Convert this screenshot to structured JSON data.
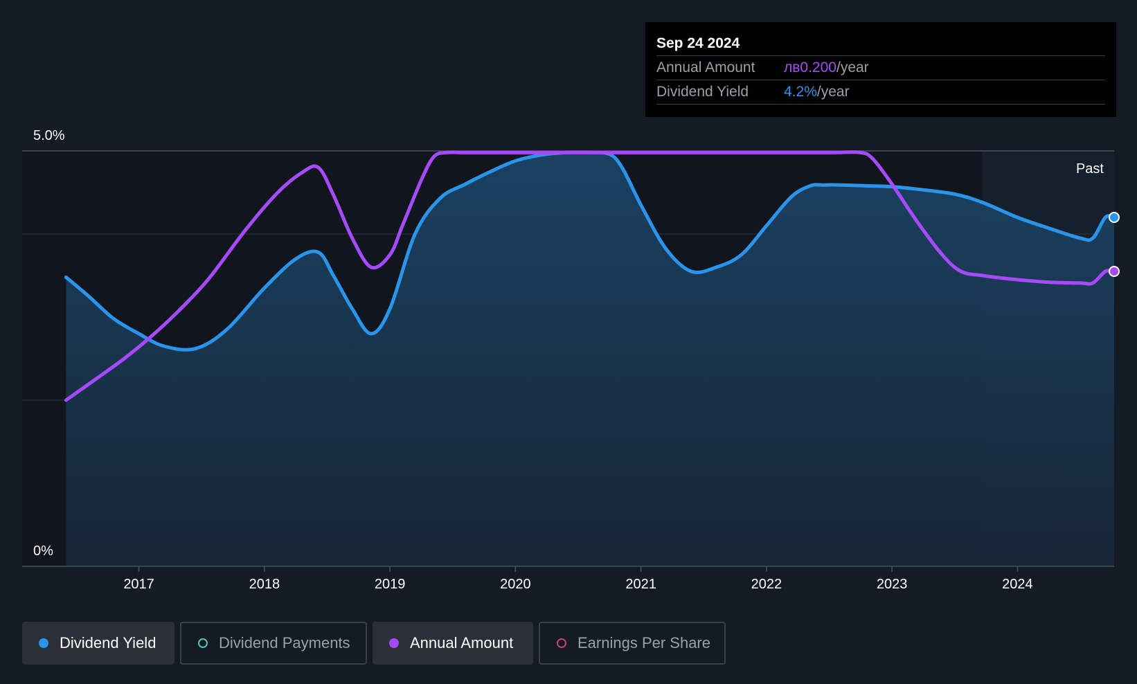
{
  "tooltip": {
    "date": "Sep 24 2024",
    "rows": [
      {
        "label": "Annual Amount",
        "prefix": "лв",
        "value": "0.200",
        "unit": "/year",
        "color": "#a64af7"
      },
      {
        "label": "Dividend Yield",
        "prefix": "",
        "value": "4.2%",
        "unit": "/year",
        "color": "#2994ea"
      }
    ]
  },
  "legend": [
    {
      "label": "Dividend Yield",
      "active": true,
      "color": "#2994ea"
    },
    {
      "label": "Dividend Payments",
      "active": false,
      "color": "#57c4b6"
    },
    {
      "label": "Annual Amount",
      "active": true,
      "color": "#a64af7"
    },
    {
      "label": "Earnings Per Share",
      "active": false,
      "color": "#c04477"
    }
  ],
  "chart_data": {
    "type": "area",
    "y_tick_labels": [
      "5.0%",
      "0%"
    ],
    "ylim": [
      0,
      5.0
    ],
    "xlim": [
      2016.07,
      2024.77
    ],
    "x_ticks": [
      2017,
      2018,
      2019,
      2020,
      2021,
      2022,
      2023,
      2024
    ],
    "past_label": "Past",
    "past_region_start": 2023.72,
    "series": [
      {
        "name": "Dividend Yield",
        "color": "#2994ea",
        "x": [
          2016.42,
          2016.6,
          2016.8,
          2017.0,
          2017.2,
          2017.45,
          2017.7,
          2018.0,
          2018.25,
          2018.43,
          2018.55,
          2018.7,
          2018.85,
          2019.0,
          2019.2,
          2019.4,
          2019.6,
          2019.8,
          2020.0,
          2020.2,
          2020.4,
          2020.6,
          2020.75,
          2020.85,
          2021.0,
          2021.2,
          2021.4,
          2021.6,
          2021.8,
          2022.0,
          2022.2,
          2022.35,
          2022.45,
          2022.6,
          2022.8,
          2023.0,
          2023.2,
          2023.5,
          2023.72,
          2024.0,
          2024.25,
          2024.5,
          2024.6,
          2024.7,
          2024.77
        ],
        "y": [
          3.48,
          3.25,
          2.98,
          2.8,
          2.65,
          2.62,
          2.85,
          3.35,
          3.7,
          3.78,
          3.5,
          3.1,
          2.8,
          3.1,
          4.0,
          4.43,
          4.6,
          4.75,
          4.88,
          4.95,
          4.98,
          4.98,
          4.96,
          4.8,
          4.35,
          3.82,
          3.55,
          3.6,
          3.75,
          4.1,
          4.45,
          4.58,
          4.59,
          4.59,
          4.58,
          4.57,
          4.54,
          4.48,
          4.38,
          4.2,
          4.07,
          3.95,
          3.95,
          4.2,
          4.2
        ]
      },
      {
        "name": "Annual Amount",
        "color": "#a64af7",
        "x": [
          2016.42,
          2016.7,
          2016.9,
          2017.1,
          2017.3,
          2017.55,
          2017.85,
          2018.1,
          2018.3,
          2018.43,
          2018.55,
          2018.7,
          2018.85,
          2019.0,
          2019.1,
          2019.25,
          2019.35,
          2019.45,
          2019.6,
          2020.0,
          2020.5,
          2021.0,
          2021.5,
          2022.0,
          2022.5,
          2022.75,
          2022.85,
          2023.0,
          2023.2,
          2023.4,
          2023.55,
          2023.72,
          2024.0,
          2024.25,
          2024.5,
          2024.6,
          2024.7,
          2024.77
        ],
        "y": [
          2.0,
          2.3,
          2.52,
          2.77,
          3.05,
          3.45,
          4.05,
          4.49,
          4.74,
          4.8,
          4.47,
          3.95,
          3.6,
          3.75,
          4.1,
          4.65,
          4.93,
          4.98,
          4.98,
          4.98,
          4.98,
          4.98,
          4.98,
          4.98,
          4.98,
          4.98,
          4.9,
          4.6,
          4.15,
          3.75,
          3.55,
          3.5,
          3.45,
          3.42,
          3.41,
          3.41,
          3.55,
          3.55
        ]
      }
    ]
  }
}
